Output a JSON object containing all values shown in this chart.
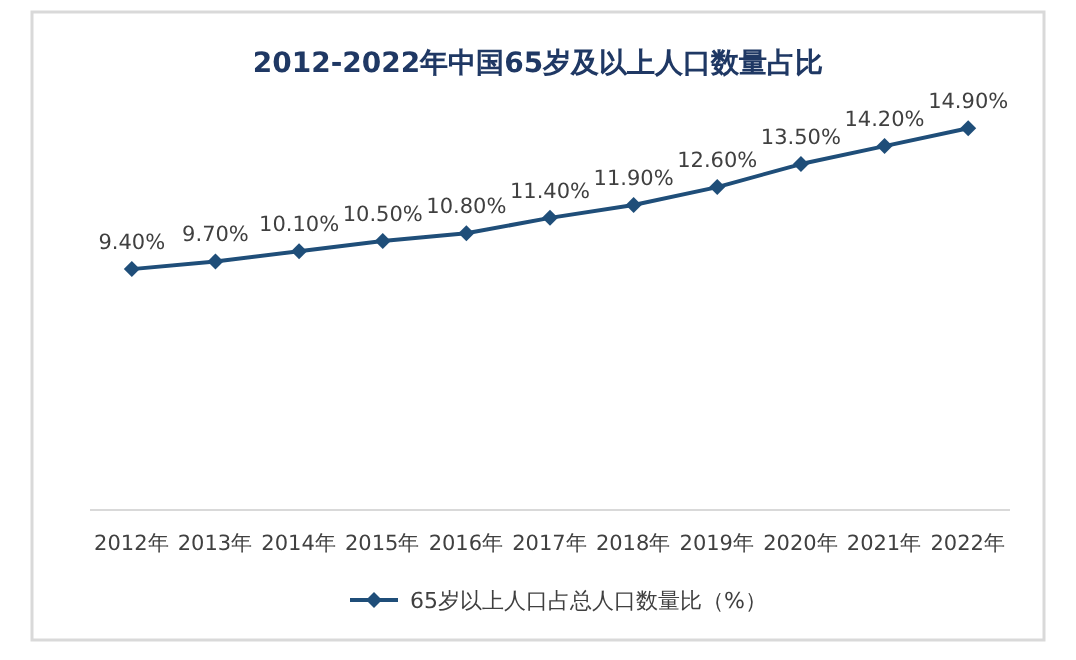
{
  "chart_data": {
    "type": "line",
    "title": "2012-2022年中国65岁及以上人口数量占比",
    "categories": [
      "2012年",
      "2013年",
      "2014年",
      "2015年",
      "2016年",
      "2017年",
      "2018年",
      "2019年",
      "2020年",
      "2021年",
      "2022年"
    ],
    "series": [
      {
        "name": "65岁以上人口占总人口数量比（%）",
        "color": "#1f4e79",
        "values": [
          9.4,
          9.7,
          10.1,
          10.5,
          10.8,
          11.4,
          11.9,
          12.6,
          13.5,
          14.2,
          14.9
        ],
        "value_labels": [
          "9.40%",
          "9.70%",
          "10.10%",
          "10.50%",
          "10.80%",
          "11.40%",
          "11.90%",
          "12.60%",
          "13.50%",
          "14.20%",
          "14.90%"
        ]
      }
    ],
    "marker": "diamond",
    "line_style": "solid",
    "legend": "bottom",
    "tick_labels": "x"
  }
}
